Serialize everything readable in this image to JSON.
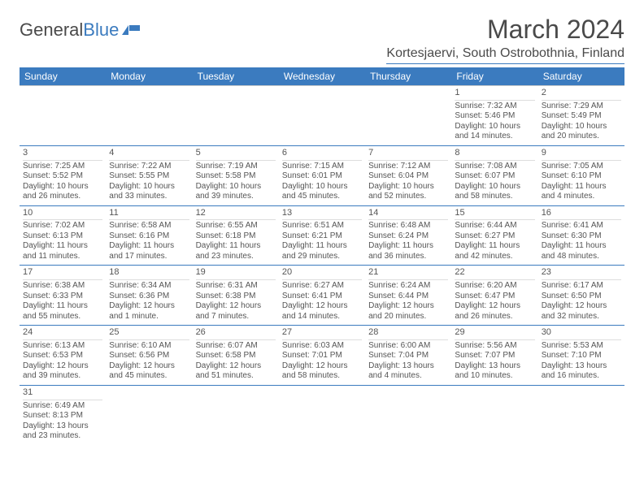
{
  "logo": {
    "text_a": "General",
    "text_b": "Blue"
  },
  "title": "March 2024",
  "location": "Kortesjaervi, South Ostrobothnia, Finland",
  "colors": {
    "accent": "#3b7bbf",
    "text": "#4a4a4a",
    "cell_text": "#555555"
  },
  "weekdays": [
    "Sunday",
    "Monday",
    "Tuesday",
    "Wednesday",
    "Thursday",
    "Friday",
    "Saturday"
  ],
  "weeks": [
    [
      null,
      null,
      null,
      null,
      null,
      {
        "n": "1",
        "sr": "Sunrise: 7:32 AM",
        "ss": "Sunset: 5:46 PM",
        "d1": "Daylight: 10 hours",
        "d2": "and 14 minutes."
      },
      {
        "n": "2",
        "sr": "Sunrise: 7:29 AM",
        "ss": "Sunset: 5:49 PM",
        "d1": "Daylight: 10 hours",
        "d2": "and 20 minutes."
      }
    ],
    [
      {
        "n": "3",
        "sr": "Sunrise: 7:25 AM",
        "ss": "Sunset: 5:52 PM",
        "d1": "Daylight: 10 hours",
        "d2": "and 26 minutes."
      },
      {
        "n": "4",
        "sr": "Sunrise: 7:22 AM",
        "ss": "Sunset: 5:55 PM",
        "d1": "Daylight: 10 hours",
        "d2": "and 33 minutes."
      },
      {
        "n": "5",
        "sr": "Sunrise: 7:19 AM",
        "ss": "Sunset: 5:58 PM",
        "d1": "Daylight: 10 hours",
        "d2": "and 39 minutes."
      },
      {
        "n": "6",
        "sr": "Sunrise: 7:15 AM",
        "ss": "Sunset: 6:01 PM",
        "d1": "Daylight: 10 hours",
        "d2": "and 45 minutes."
      },
      {
        "n": "7",
        "sr": "Sunrise: 7:12 AM",
        "ss": "Sunset: 6:04 PM",
        "d1": "Daylight: 10 hours",
        "d2": "and 52 minutes."
      },
      {
        "n": "8",
        "sr": "Sunrise: 7:08 AM",
        "ss": "Sunset: 6:07 PM",
        "d1": "Daylight: 10 hours",
        "d2": "and 58 minutes."
      },
      {
        "n": "9",
        "sr": "Sunrise: 7:05 AM",
        "ss": "Sunset: 6:10 PM",
        "d1": "Daylight: 11 hours",
        "d2": "and 4 minutes."
      }
    ],
    [
      {
        "n": "10",
        "sr": "Sunrise: 7:02 AM",
        "ss": "Sunset: 6:13 PM",
        "d1": "Daylight: 11 hours",
        "d2": "and 11 minutes."
      },
      {
        "n": "11",
        "sr": "Sunrise: 6:58 AM",
        "ss": "Sunset: 6:16 PM",
        "d1": "Daylight: 11 hours",
        "d2": "and 17 minutes."
      },
      {
        "n": "12",
        "sr": "Sunrise: 6:55 AM",
        "ss": "Sunset: 6:18 PM",
        "d1": "Daylight: 11 hours",
        "d2": "and 23 minutes."
      },
      {
        "n": "13",
        "sr": "Sunrise: 6:51 AM",
        "ss": "Sunset: 6:21 PM",
        "d1": "Daylight: 11 hours",
        "d2": "and 29 minutes."
      },
      {
        "n": "14",
        "sr": "Sunrise: 6:48 AM",
        "ss": "Sunset: 6:24 PM",
        "d1": "Daylight: 11 hours",
        "d2": "and 36 minutes."
      },
      {
        "n": "15",
        "sr": "Sunrise: 6:44 AM",
        "ss": "Sunset: 6:27 PM",
        "d1": "Daylight: 11 hours",
        "d2": "and 42 minutes."
      },
      {
        "n": "16",
        "sr": "Sunrise: 6:41 AM",
        "ss": "Sunset: 6:30 PM",
        "d1": "Daylight: 11 hours",
        "d2": "and 48 minutes."
      }
    ],
    [
      {
        "n": "17",
        "sr": "Sunrise: 6:38 AM",
        "ss": "Sunset: 6:33 PM",
        "d1": "Daylight: 11 hours",
        "d2": "and 55 minutes."
      },
      {
        "n": "18",
        "sr": "Sunrise: 6:34 AM",
        "ss": "Sunset: 6:36 PM",
        "d1": "Daylight: 12 hours",
        "d2": "and 1 minute."
      },
      {
        "n": "19",
        "sr": "Sunrise: 6:31 AM",
        "ss": "Sunset: 6:38 PM",
        "d1": "Daylight: 12 hours",
        "d2": "and 7 minutes."
      },
      {
        "n": "20",
        "sr": "Sunrise: 6:27 AM",
        "ss": "Sunset: 6:41 PM",
        "d1": "Daylight: 12 hours",
        "d2": "and 14 minutes."
      },
      {
        "n": "21",
        "sr": "Sunrise: 6:24 AM",
        "ss": "Sunset: 6:44 PM",
        "d1": "Daylight: 12 hours",
        "d2": "and 20 minutes."
      },
      {
        "n": "22",
        "sr": "Sunrise: 6:20 AM",
        "ss": "Sunset: 6:47 PM",
        "d1": "Daylight: 12 hours",
        "d2": "and 26 minutes."
      },
      {
        "n": "23",
        "sr": "Sunrise: 6:17 AM",
        "ss": "Sunset: 6:50 PM",
        "d1": "Daylight: 12 hours",
        "d2": "and 32 minutes."
      }
    ],
    [
      {
        "n": "24",
        "sr": "Sunrise: 6:13 AM",
        "ss": "Sunset: 6:53 PM",
        "d1": "Daylight: 12 hours",
        "d2": "and 39 minutes."
      },
      {
        "n": "25",
        "sr": "Sunrise: 6:10 AM",
        "ss": "Sunset: 6:56 PM",
        "d1": "Daylight: 12 hours",
        "d2": "and 45 minutes."
      },
      {
        "n": "26",
        "sr": "Sunrise: 6:07 AM",
        "ss": "Sunset: 6:58 PM",
        "d1": "Daylight: 12 hours",
        "d2": "and 51 minutes."
      },
      {
        "n": "27",
        "sr": "Sunrise: 6:03 AM",
        "ss": "Sunset: 7:01 PM",
        "d1": "Daylight: 12 hours",
        "d2": "and 58 minutes."
      },
      {
        "n": "28",
        "sr": "Sunrise: 6:00 AM",
        "ss": "Sunset: 7:04 PM",
        "d1": "Daylight: 13 hours",
        "d2": "and 4 minutes."
      },
      {
        "n": "29",
        "sr": "Sunrise: 5:56 AM",
        "ss": "Sunset: 7:07 PM",
        "d1": "Daylight: 13 hours",
        "d2": "and 10 minutes."
      },
      {
        "n": "30",
        "sr": "Sunrise: 5:53 AM",
        "ss": "Sunset: 7:10 PM",
        "d1": "Daylight: 13 hours",
        "d2": "and 16 minutes."
      }
    ],
    [
      {
        "n": "31",
        "sr": "Sunrise: 6:49 AM",
        "ss": "Sunset: 8:13 PM",
        "d1": "Daylight: 13 hours",
        "d2": "and 23 minutes."
      },
      null,
      null,
      null,
      null,
      null,
      null
    ]
  ]
}
